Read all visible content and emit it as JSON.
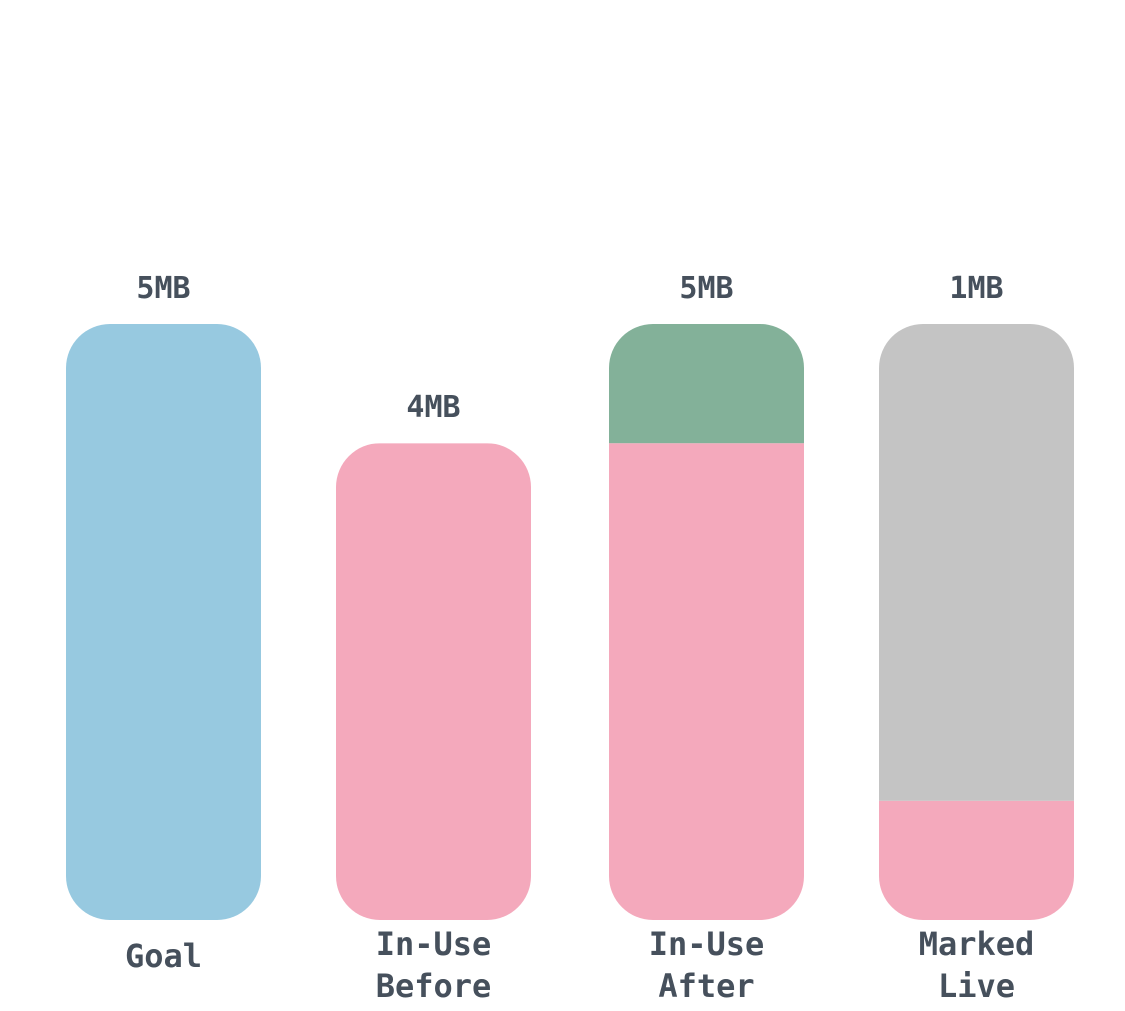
{
  "chart_data": {
    "type": "bar",
    "stacked": true,
    "ylim": [
      0,
      5
    ],
    "unit": "MB",
    "grid": false,
    "legend": "none",
    "bars": [
      {
        "label": [
          "Goal"
        ],
        "value_label": "5MB",
        "segments": [
          {
            "value": 5,
            "color": "#97c9e0"
          }
        ]
      },
      {
        "label": [
          "In-Use",
          "Before"
        ],
        "value_label": "4MB",
        "segments": [
          {
            "value": 4,
            "color": "#f4a9bc"
          }
        ]
      },
      {
        "label": [
          "In-Use",
          "After"
        ],
        "value_label": "5MB",
        "segments": [
          {
            "value": 4,
            "color": "#f4a9bc"
          },
          {
            "value": 1,
            "color": "#83b199"
          }
        ]
      },
      {
        "label": [
          "Marked",
          "Live"
        ],
        "value_label": "1MB",
        "segments": [
          {
            "value": 1,
            "color": "#f4a9bc"
          },
          {
            "value": 4,
            "color": "#c4c4c4"
          }
        ]
      }
    ]
  }
}
